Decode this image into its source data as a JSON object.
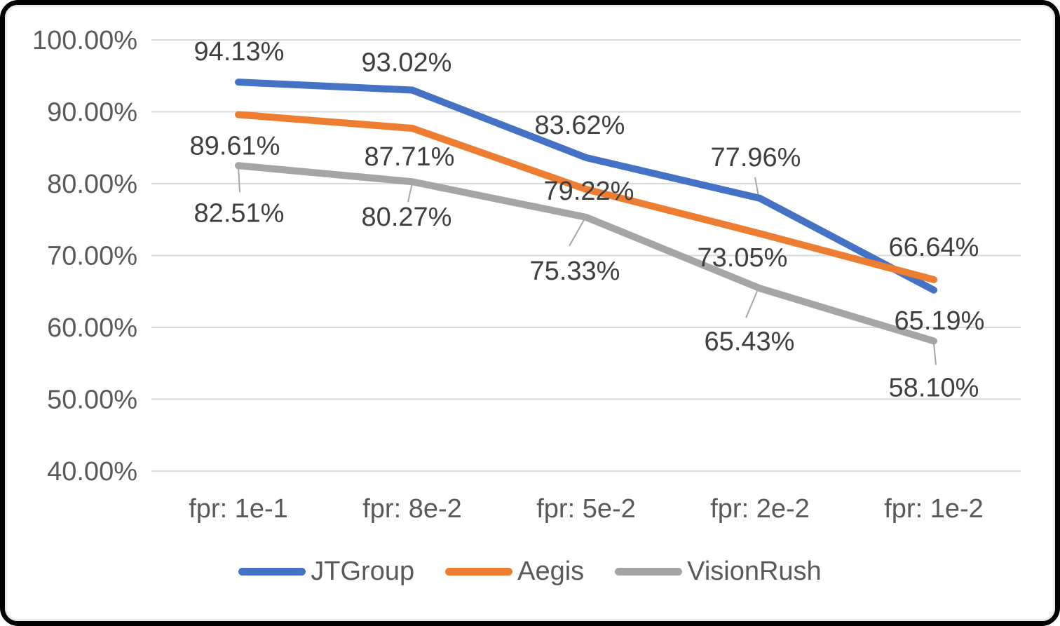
{
  "chart_data": {
    "type": "line",
    "title": "",
    "xlabel": "",
    "ylabel": "",
    "categories": [
      "fpr: 1e-1",
      "fpr: 8e-2",
      "fpr: 5e-2",
      "fpr: 2e-2",
      "fpr: 1e-2"
    ],
    "series": [
      {
        "name": "JTGroup",
        "color": "#4472C4",
        "values": [
          94.13,
          93.02,
          83.62,
          77.96,
          65.19
        ],
        "data_labels": [
          "94.13%",
          "93.02%",
          "83.62%",
          "77.96%",
          "65.19%"
        ]
      },
      {
        "name": "Aegis",
        "color": "#ED7D31",
        "values": [
          89.61,
          87.71,
          79.22,
          73.05,
          66.64
        ],
        "data_labels": [
          "89.61%",
          "87.71%",
          "79.22%",
          "73.05%",
          "66.64%"
        ]
      },
      {
        "name": "VisionRush",
        "color": "#A5A5A5",
        "values": [
          82.51,
          80.27,
          75.33,
          65.43,
          58.1
        ],
        "data_labels": [
          "82.51%",
          "80.27%",
          "75.33%",
          "65.43%",
          "58.10%"
        ]
      }
    ],
    "y_axis": {
      "range": [
        40,
        100
      ],
      "tick_step": 10,
      "tick_labels": [
        "100.00%",
        "90.00%",
        "80.00%",
        "70.00%",
        "60.00%",
        "50.00%",
        "40.00%"
      ]
    },
    "grid": "horizontal",
    "legend_position": "bottom",
    "colors": {
      "gridline": "#D9D9D9",
      "axis_text": "#595959",
      "data_label_text": "#3F3F3F",
      "leader_line": "#A6A6A6",
      "frame_border": "#000000",
      "background": "#FFFFFF"
    }
  }
}
